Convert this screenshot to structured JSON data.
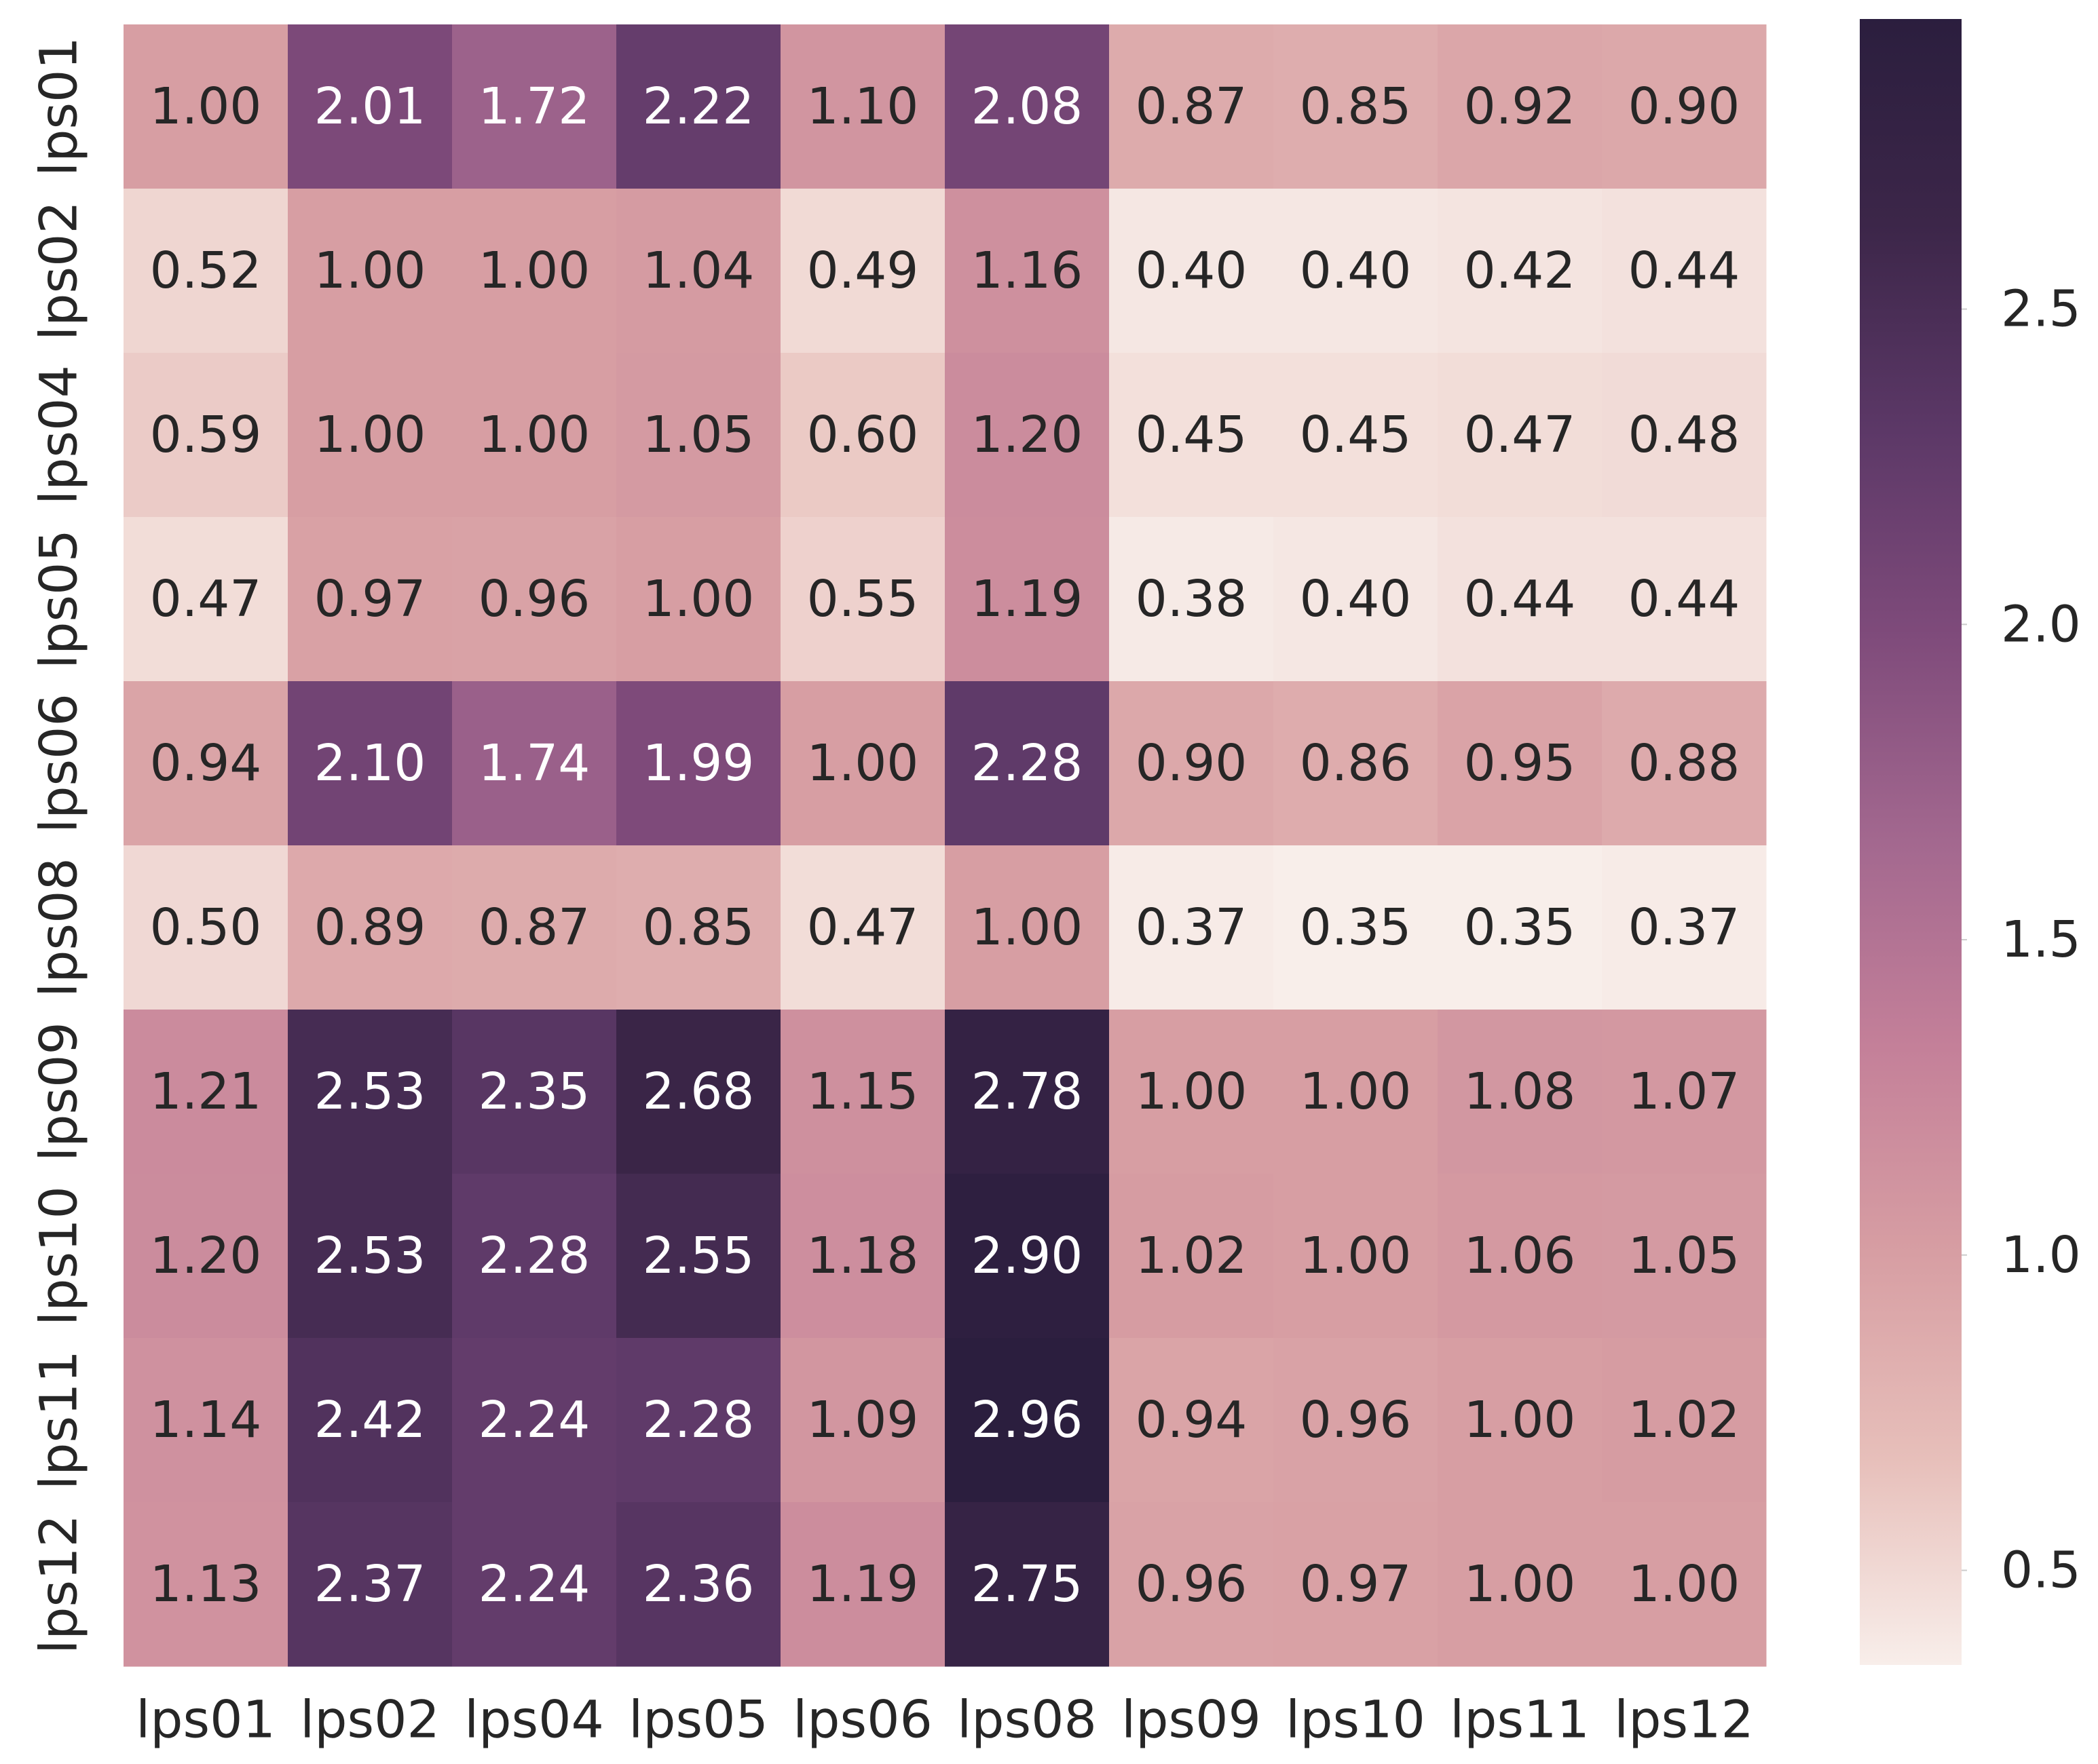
{
  "chart_data": {
    "type": "heatmap",
    "title": "",
    "xlabel": "",
    "ylabel": "",
    "x_categories": [
      "lps01",
      "lps02",
      "lps04",
      "lps05",
      "lps06",
      "lps08",
      "lps09",
      "lps10",
      "lps11",
      "lps12"
    ],
    "y_categories": [
      "lps01",
      "lps02",
      "lps04",
      "lps05",
      "lps06",
      "lps08",
      "lps09",
      "lps10",
      "lps11",
      "lps12"
    ],
    "values": [
      [
        1.0,
        2.01,
        1.72,
        2.22,
        1.1,
        2.08,
        0.87,
        0.85,
        0.92,
        0.9
      ],
      [
        0.52,
        1.0,
        1.0,
        1.04,
        0.49,
        1.16,
        0.4,
        0.4,
        0.42,
        0.44
      ],
      [
        0.59,
        1.0,
        1.0,
        1.05,
        0.6,
        1.2,
        0.45,
        0.45,
        0.47,
        0.48
      ],
      [
        0.47,
        0.97,
        0.96,
        1.0,
        0.55,
        1.19,
        0.38,
        0.4,
        0.44,
        0.44
      ],
      [
        0.94,
        2.1,
        1.74,
        1.99,
        1.0,
        2.28,
        0.9,
        0.86,
        0.95,
        0.88
      ],
      [
        0.5,
        0.89,
        0.87,
        0.85,
        0.47,
        1.0,
        0.37,
        0.35,
        0.35,
        0.37
      ],
      [
        1.21,
        2.53,
        2.35,
        2.68,
        1.15,
        2.78,
        1.0,
        1.0,
        1.08,
        1.07
      ],
      [
        1.2,
        2.53,
        2.28,
        2.55,
        1.18,
        2.9,
        1.02,
        1.0,
        1.06,
        1.05
      ],
      [
        1.14,
        2.42,
        2.24,
        2.28,
        1.09,
        2.96,
        0.94,
        0.96,
        1.0,
        1.02
      ],
      [
        1.13,
        2.37,
        2.24,
        2.36,
        1.19,
        2.75,
        0.96,
        0.97,
        1.0,
        1.0
      ]
    ],
    "value_format": "0.00",
    "colorbar": {
      "range": [
        0.35,
        2.96
      ],
      "ticks": [
        0.5,
        1.0,
        1.5,
        2.0,
        2.5
      ],
      "tick_labels": [
        "0.5",
        "1.0",
        "1.5",
        "2.0",
        "2.5"
      ],
      "colors": [
        "#f8eeea",
        "#e7bfba",
        "#d79ea3",
        "#c48099",
        "#a3688f",
        "#7f4b7b",
        "#5c3867",
        "#3c2649",
        "#2b1e3e"
      ],
      "placement": "right"
    },
    "annotation_colors": {
      "dark_text": "#262626",
      "light_text": "#ffffff"
    },
    "grid": false
  }
}
